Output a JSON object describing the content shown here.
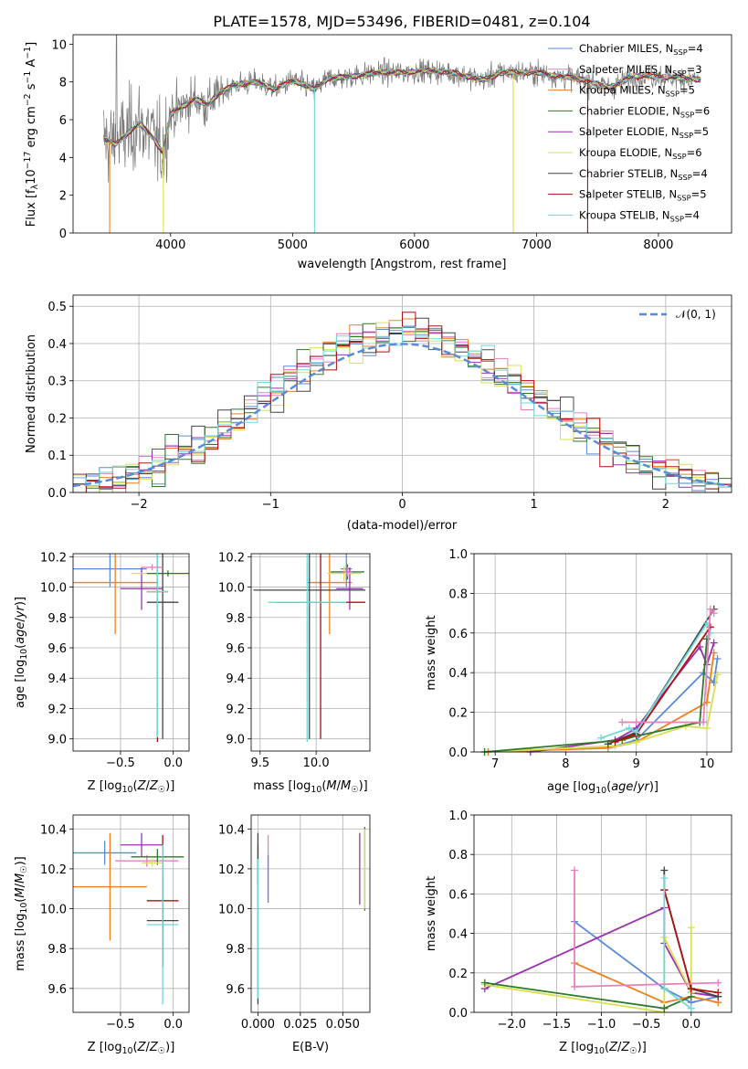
{
  "figure": {
    "title": "PLATE=1578, MJD=53496, FIBERID=0481, z=0.104"
  },
  "chart_data": [
    {
      "id": "spectrum",
      "type": "line",
      "xlabel": "wavelength [Angstrom, rest frame]",
      "ylabel": "Flux [f_λ10^-17 erg cm^-2 s^-1 A^-1]",
      "xlim": [
        3200,
        8600
      ],
      "ylim": [
        0,
        10.5
      ],
      "xticks": [
        4000,
        5000,
        6000,
        7000,
        8000
      ],
      "yticks": [
        0,
        2,
        4,
        6,
        8,
        10
      ],
      "legend_position": "right",
      "legend": [
        {
          "model": "Chabrier MILES",
          "n": "4",
          "color": "#5b8bd8"
        },
        {
          "model": "Salpeter MILES",
          "n": "3",
          "color": "#e87fbf"
        },
        {
          "model": "Kroupa MILES",
          "n": "5",
          "color": "#f07f20"
        },
        {
          "model": "Chabrier ELODIE",
          "n": "6",
          "color": "#2d7a2d"
        },
        {
          "model": "Salpeter ELODIE",
          "n": "5",
          "color": "#9b30b0"
        },
        {
          "model": "Kroupa ELODIE",
          "n": "6",
          "color": "#d8e050"
        },
        {
          "model": "Chabrier STELIB",
          "n": "4",
          "color": "#444444"
        },
        {
          "model": "Salpeter STELIB",
          "n": "5",
          "color": "#b01010"
        },
        {
          "model": "Kroupa STELIB",
          "n": "4",
          "color": "#70d8d8"
        }
      ],
      "continuum": [
        [
          3450,
          5.0
        ],
        [
          3550,
          4.7
        ],
        [
          3650,
          5.3
        ],
        [
          3750,
          5.8
        ],
        [
          3850,
          5.1
        ],
        [
          3930,
          4.3
        ],
        [
          4000,
          6.3
        ],
        [
          4100,
          6.7
        ],
        [
          4200,
          7.1
        ],
        [
          4300,
          6.8
        ],
        [
          4400,
          7.4
        ],
        [
          4500,
          7.8
        ],
        [
          4700,
          8.0
        ],
        [
          4861,
          7.6
        ],
        [
          5000,
          8.1
        ],
        [
          5175,
          7.6
        ],
        [
          5300,
          8.2
        ],
        [
          5500,
          8.3
        ],
        [
          5700,
          8.5
        ],
        [
          5900,
          8.5
        ],
        [
          6100,
          8.6
        ],
        [
          6300,
          8.5
        ],
        [
          6563,
          8.1
        ],
        [
          6700,
          8.5
        ],
        [
          7000,
          8.5
        ],
        [
          7200,
          8.3
        ],
        [
          7400,
          8.1
        ],
        [
          7600,
          7.7
        ],
        [
          7800,
          8.3
        ],
        [
          8000,
          8.3
        ],
        [
          8200,
          8.2
        ],
        [
          8350,
          8.1
        ]
      ],
      "dips": [
        [
          3500,
          0
        ],
        [
          3940,
          0
        ],
        [
          5180,
          0
        ],
        [
          6810,
          0
        ],
        [
          7420,
          0
        ]
      ]
    },
    {
      "id": "residuals",
      "type": "histogram",
      "xlabel": "(data-model)/error",
      "ylabel": "Normed distribution",
      "xlim": [
        -2.5,
        2.5
      ],
      "ylim": [
        0,
        0.53
      ],
      "xticks": [
        -2,
        -1,
        0,
        1,
        2
      ],
      "yticks": [
        0.0,
        0.1,
        0.2,
        0.3,
        0.4,
        0.5
      ],
      "legend_label": "𝒩(0, 1)",
      "bin_width": 0.1
    },
    {
      "id": "age_vs_Z",
      "type": "scatter",
      "xlabel": "Z [log10(Z/Z☉)]",
      "ylabel": "age [log10(age/yr)]",
      "xlim": [
        -0.95,
        0.15
      ],
      "ylim": [
        8.92,
        10.22
      ],
      "xticks": [
        -0.5,
        0.0
      ],
      "yticks": [
        9.0,
        9.2,
        9.4,
        9.6,
        9.8,
        10.0,
        10.2
      ],
      "points": [
        {
          "x": -0.6,
          "xerr": 0.35,
          "y": 10.12,
          "yerr": 0.12,
          "color": "#5b8bd8"
        },
        {
          "x": -0.55,
          "xerr": 0.4,
          "y": 10.03,
          "yerr": 0.34,
          "color": "#f07f20"
        },
        {
          "x": -0.3,
          "xerr": 0.2,
          "y": 9.99,
          "yerr": 0.14,
          "color": "#9b30b0"
        },
        {
          "x": -0.15,
          "xerr": 0.25,
          "y": 10.09,
          "yerr": 0.05,
          "color": "#d8e050"
        },
        {
          "x": -0.05,
          "xerr": 0.2,
          "y": 10.09,
          "yerr": 0.02,
          "color": "#2d7a2d"
        },
        {
          "x": -0.1,
          "xerr": 0.15,
          "y": 9.9,
          "yerr": 0.9,
          "color": "#444444"
        },
        {
          "x": -0.15,
          "xerr": 0.1,
          "y": 9.97,
          "yerr": 0.99,
          "color": "#b01010"
        },
        {
          "x": -0.15,
          "xerr": 0.1,
          "y": 9.97,
          "yerr": 0.96,
          "color": "#70d8d8"
        },
        {
          "x": -0.2,
          "xerr": 0.1,
          "y": 10.13,
          "yerr": 0.02,
          "color": "#e87fbf"
        }
      ]
    },
    {
      "id": "age_vs_mass",
      "type": "scatter",
      "xlabel": "mass [log10(M/M☉)]",
      "ylabel": "",
      "xlim": [
        9.42,
        10.48
      ],
      "ylim": [
        8.92,
        10.22
      ],
      "xticks": [
        9.5,
        10.0
      ],
      "yticks": [
        9.0,
        9.2,
        9.4,
        9.6,
        9.8,
        10.0,
        10.2
      ],
      "points": [
        {
          "x": 10.27,
          "xerr": 0.05,
          "y": 10.12,
          "yerr": 0.12,
          "color": "#5b8bd8"
        },
        {
          "x": 10.12,
          "xerr": 0.2,
          "y": 10.03,
          "yerr": 0.34,
          "color": "#f07f20"
        },
        {
          "x": 10.3,
          "xerr": 0.12,
          "y": 9.99,
          "yerr": 0.14,
          "color": "#9b30b0"
        },
        {
          "x": 10.25,
          "xerr": 0.15,
          "y": 10.09,
          "yerr": 0.05,
          "color": "#d8e050"
        },
        {
          "x": 10.28,
          "xerr": 0.15,
          "y": 10.1,
          "yerr": 0.05,
          "color": "#2d7a2d"
        },
        {
          "x": 9.94,
          "xerr": 0.5,
          "y": 9.98,
          "yerr": 0.98,
          "color": "#444444"
        },
        {
          "x": 10.04,
          "xerr": 0.4,
          "y": 9.9,
          "yerr": 0.9,
          "color": "#b01010"
        },
        {
          "x": 9.92,
          "xerr": 0.35,
          "y": 9.9,
          "yerr": 0.92,
          "color": "#70d8d8"
        },
        {
          "x": 10.28,
          "xerr": 0.04,
          "y": 10.1,
          "yerr": 0.03,
          "color": "#e87fbf"
        }
      ]
    },
    {
      "id": "massweight_vs_age",
      "type": "line",
      "xlabel": "age [log10(age/yr)]",
      "ylabel": "mass weight",
      "xlim": [
        6.7,
        10.35
      ],
      "ylim": [
        0,
        1.0
      ],
      "xticks": [
        7,
        8,
        9,
        10
      ],
      "yticks": [
        0.0,
        0.2,
        0.4,
        0.6,
        0.8,
        1.0
      ],
      "series": [
        {
          "color": "#5b8bd8",
          "x": [
            6.9,
            8.7,
            9.0,
            9.95,
            10.1,
            10.15
          ],
          "y": [
            0.0,
            0.03,
            0.06,
            0.4,
            0.35,
            0.47
          ]
        },
        {
          "color": "#f07f20",
          "x": [
            6.9,
            8.6,
            9.0,
            10.0,
            10.1
          ],
          "y": [
            0.0,
            0.02,
            0.05,
            0.25,
            0.5
          ]
        },
        {
          "color": "#9b30b0",
          "x": [
            7.5,
            8.7,
            9.0,
            9.9,
            10.0,
            10.1
          ],
          "y": [
            0.0,
            0.06,
            0.12,
            0.53,
            0.44,
            0.55
          ]
        },
        {
          "color": "#d8e050",
          "x": [
            6.85,
            8.7,
            9.0,
            9.7,
            10.0,
            10.15
          ],
          "y": [
            0.0,
            0.03,
            0.05,
            0.13,
            0.12,
            0.39
          ]
        },
        {
          "color": "#2d7a2d",
          "x": [
            6.85,
            8.8,
            9.0,
            9.9,
            10.0
          ],
          "y": [
            0.0,
            0.06,
            0.08,
            0.15,
            0.57
          ]
        },
        {
          "color": "#444444",
          "x": [
            8.6,
            9.0,
            10.1
          ],
          "y": [
            0.04,
            0.1,
            0.72
          ]
        },
        {
          "color": "#b01010",
          "x": [
            8.7,
            9.0,
            10.05
          ],
          "y": [
            0.05,
            0.09,
            0.63
          ]
        },
        {
          "color": "#70d8d8",
          "x": [
            8.5,
            8.9,
            9.0,
            10.0,
            10.05
          ],
          "y": [
            0.07,
            0.12,
            0.1,
            0.65,
            0.6
          ]
        },
        {
          "color": "#e87fbf",
          "x": [
            8.8,
            9.0,
            9.95,
            10.05,
            10.1
          ],
          "y": [
            0.15,
            0.15,
            0.15,
            0.72,
            0.7
          ]
        }
      ]
    },
    {
      "id": "mass_vs_Z",
      "type": "scatter",
      "xlabel": "Z [log10(Z/Z☉)]",
      "ylabel": "mass [log10(M/M☉)]",
      "xlim": [
        -0.95,
        0.15
      ],
      "ylim": [
        9.48,
        10.47
      ],
      "xticks": [
        -0.5,
        0.0
      ],
      "yticks": [
        9.6,
        9.8,
        10.0,
        10.2,
        10.4
      ],
      "points": [
        {
          "x": -0.65,
          "xerr": 0.3,
          "y": 10.28,
          "yerr": 0.06,
          "color": "#5b8bd8"
        },
        {
          "x": -0.6,
          "xerr": 0.35,
          "y": 10.11,
          "yerr": 0.27,
          "color": "#f07f20"
        },
        {
          "x": -0.3,
          "xerr": 0.2,
          "y": 10.32,
          "yerr": 0.06,
          "color": "#9b30b0"
        },
        {
          "x": -0.25,
          "xerr": 0.3,
          "y": 10.24,
          "yerr": 0.03,
          "color": "#e87fbf"
        },
        {
          "x": -0.15,
          "xerr": 0.25,
          "y": 10.26,
          "yerr": 0.04,
          "color": "#2d7a2d"
        },
        {
          "x": -0.2,
          "xerr": 0.1,
          "y": 10.23,
          "yerr": 0.02,
          "color": "#d8e050"
        },
        {
          "x": -0.1,
          "xerr": 0.15,
          "y": 10.04,
          "yerr": 0.33,
          "color": "#b01010"
        },
        {
          "x": -0.1,
          "xerr": 0.15,
          "y": 9.94,
          "yerr": 0.23,
          "color": "#444444"
        },
        {
          "x": -0.1,
          "xerr": 0.15,
          "y": 9.92,
          "yerr": 0.4,
          "color": "#70d8d8"
        }
      ]
    },
    {
      "id": "mass_vs_ebv",
      "type": "scatter",
      "xlabel": "E(B-V)",
      "ylabel": "",
      "xlim": [
        -0.004,
        0.066
      ],
      "ylim": [
        9.48,
        10.47
      ],
      "xticks": [
        0.0,
        0.025,
        0.05
      ],
      "xticklabels": [
        "0.000",
        "0.025",
        "0.050"
      ],
      "yticks": [
        9.6,
        9.8,
        10.0,
        10.2,
        10.4
      ],
      "points": [
        {
          "x": 0.0,
          "y": 10.22,
          "yerr": 0.1,
          "color": "#b01010"
        },
        {
          "x": 0.0,
          "y": 9.95,
          "yerr": 0.43,
          "color": "#444444"
        },
        {
          "x": 0.0,
          "y": 9.9,
          "yerr": 0.35,
          "color": "#70d8d8"
        },
        {
          "x": 0.006,
          "y": 10.2,
          "yerr": 0.17,
          "color": "#e87fbf"
        },
        {
          "x": 0.006,
          "y": 10.15,
          "yerr": 0.12,
          "color": "#5b8bd8"
        },
        {
          "x": 0.06,
          "y": 10.2,
          "yerr": 0.18,
          "color": "#9b30b0"
        },
        {
          "x": 0.063,
          "y": 10.2,
          "yerr": 0.21,
          "color": "#2d7a2d"
        },
        {
          "x": 0.063,
          "y": 10.2,
          "yerr": 0.2,
          "color": "#d8e050"
        }
      ]
    },
    {
      "id": "massweight_vs_Z",
      "type": "line",
      "xlabel": "Z [log10(Z/Z☉)]",
      "ylabel": "mass weight",
      "xlim": [
        -2.42,
        0.45
      ],
      "ylim": [
        0,
        1.0
      ],
      "xticks": [
        -2.0,
        -1.5,
        -1.0,
        -0.5,
        0.0
      ],
      "xticklabels": [
        "−2.0",
        "−1.5",
        "−1.0",
        "−0.5",
        "0.0"
      ],
      "yticks": [
        0.0,
        0.2,
        0.4,
        0.6,
        0.8,
        1.0
      ],
      "series": [
        {
          "color": "#5b8bd8",
          "x": [
            -1.3,
            -0.3,
            0.0,
            0.3
          ],
          "y": [
            0.46,
            0.12,
            0.05,
            0.08
          ]
        },
        {
          "color": "#f07f20",
          "x": [
            -1.3,
            -0.3,
            0.0,
            0.3
          ],
          "y": [
            0.25,
            0.05,
            0.08,
            0.05
          ]
        },
        {
          "color": "#9b30b0",
          "x": [
            -2.3,
            -0.3,
            -0.3,
            0.0,
            0.3
          ],
          "y": [
            0.12,
            0.53,
            0.35,
            0.1,
            0.08
          ]
        },
        {
          "color": "#d8e050",
          "x": [
            -2.3,
            -0.3,
            -0.3,
            0.0,
            0.0
          ],
          "y": [
            0.14,
            0.0,
            0.38,
            0.1,
            0.43
          ]
        },
        {
          "color": "#2d7a2d",
          "x": [
            -2.3,
            -0.3,
            0.0
          ],
          "y": [
            0.15,
            0.02,
            0.08
          ]
        },
        {
          "color": "#444444",
          "x": [
            -0.3,
            -0.3,
            0.0,
            0.3
          ],
          "y": [
            0.72,
            0.62,
            0.12,
            0.08
          ]
        },
        {
          "color": "#b01010",
          "x": [
            -0.3,
            0.0,
            0.3
          ],
          "y": [
            0.62,
            0.12,
            0.1
          ]
        },
        {
          "color": "#70d8d8",
          "x": [
            -0.3,
            -0.3,
            0.0
          ],
          "y": [
            0.68,
            0.12,
            0.02
          ]
        },
        {
          "color": "#e87fbf",
          "x": [
            -1.3,
            -1.3,
            0.3
          ],
          "y": [
            0.72,
            0.13,
            0.15
          ]
        }
      ]
    }
  ]
}
